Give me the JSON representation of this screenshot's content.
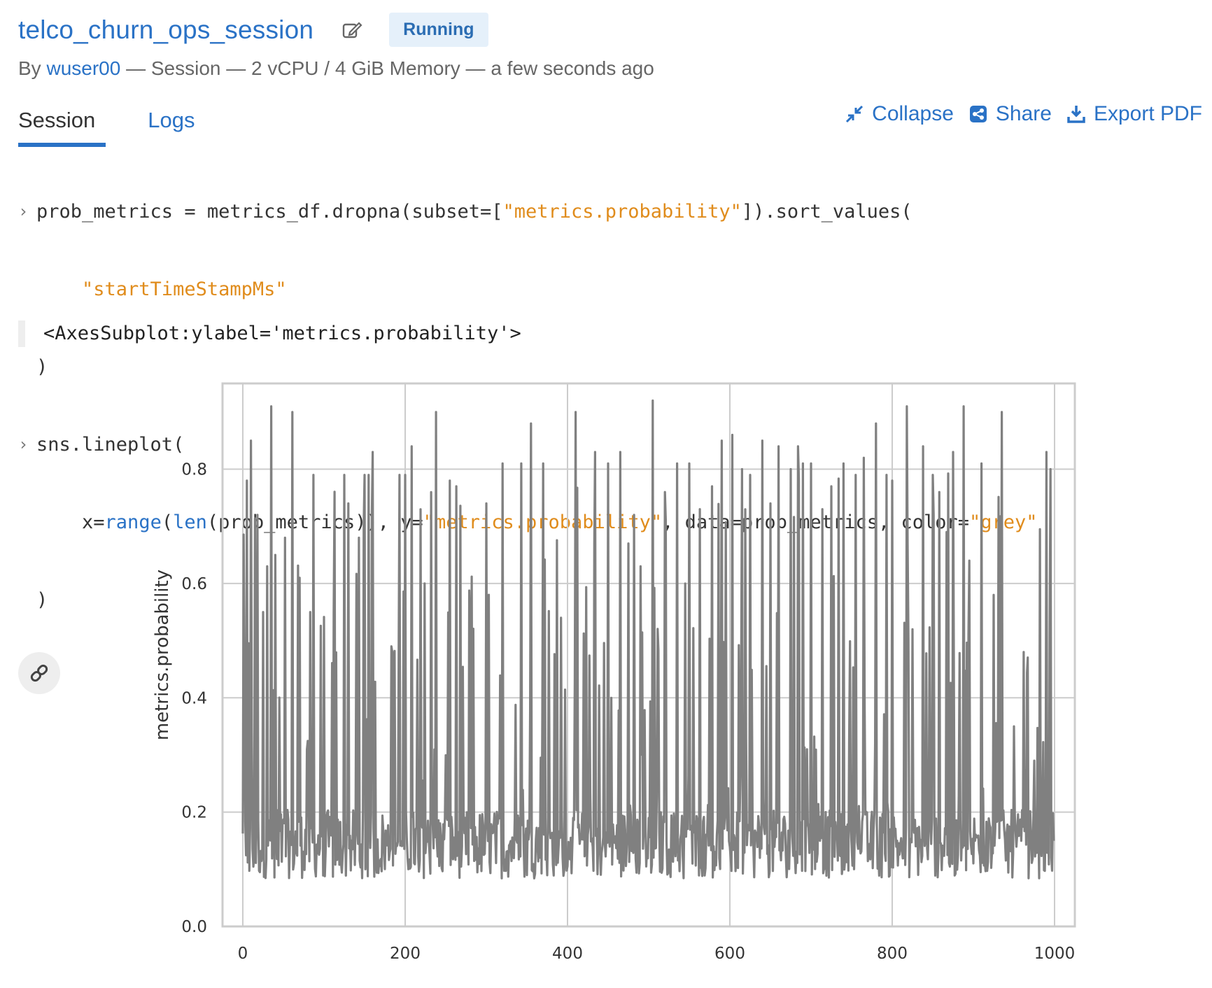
{
  "header": {
    "title": "telco_churn_ops_session",
    "status": "Running",
    "meta_prefix": "By ",
    "user": "wuser00",
    "meta_rest": " — Session — 2 vCPU / 4 GiB Memory — a few seconds ago"
  },
  "tabs": [
    {
      "label": "Session",
      "active": true
    },
    {
      "label": "Logs",
      "active": false
    }
  ],
  "actions": {
    "collapse": "Collapse",
    "share": "Share",
    "export": "Export PDF"
  },
  "code": {
    "l1a": "prob_metrics = metrics_df.dropna(subset=[",
    "l1s": "\"metrics.probability\"",
    "l1b": "]).sort_values(",
    "l2s": "    \"startTimeStampMs\"",
    "l3": ")",
    "l4": "sns.lineplot(",
    "l5a": "    x=",
    "l5f1": "range",
    "l5b": "(",
    "l5f2": "len",
    "l5c": "(prob_metrics)), y=",
    "l5s1": "\"metrics.probability\"",
    "l5d": ", data=prob_metrics, color=",
    "l5s2": "\"grey\"",
    "l6": ")"
  },
  "output": "<AxesSubplot:ylabel='metrics.probability'>",
  "colors": {
    "accent": "#2a72c6",
    "line": "#808080",
    "string": "#e08c1c"
  },
  "chart_data": {
    "type": "line",
    "xlabel": "",
    "ylabel": "metrics.probability",
    "xlim": [
      -25,
      1025
    ],
    "ylim": [
      0.0,
      0.95
    ],
    "xticks": [
      0,
      200,
      400,
      600,
      800,
      1000
    ],
    "yticks": [
      0.0,
      0.2,
      0.4,
      0.6,
      0.8
    ],
    "ytick_labels": [
      "0.0",
      "0.2",
      "0.4",
      "0.6",
      "0.8"
    ],
    "grid": true,
    "series": [
      {
        "color": "#808080",
        "n_points": 1000,
        "baseline": 0.15,
        "min": 0.04,
        "max": 0.92,
        "spikes": [
          [
            5,
            0.78
          ],
          [
            10,
            0.85
          ],
          [
            18,
            0.72
          ],
          [
            25,
            0.55
          ],
          [
            30,
            0.63
          ],
          [
            35,
            0.91
          ],
          [
            40,
            0.65
          ],
          [
            52,
            0.68
          ],
          [
            61,
            0.9
          ],
          [
            70,
            0.61
          ],
          [
            83,
            0.55
          ],
          [
            87,
            0.79
          ],
          [
            98,
            0.28
          ],
          [
            112,
            0.55
          ],
          [
            125,
            0.79
          ],
          [
            130,
            0.74
          ],
          [
            143,
            0.68
          ],
          [
            150,
            0.79
          ],
          [
            155,
            0.79
          ],
          [
            160,
            0.83
          ],
          [
            183,
            0.49
          ],
          [
            193,
            0.79
          ],
          [
            200,
            0.79
          ],
          [
            208,
            0.84
          ],
          [
            224,
            0.6
          ],
          [
            238,
            0.9
          ],
          [
            255,
            0.78
          ],
          [
            263,
            0.77
          ],
          [
            300,
            0.74
          ],
          [
            320,
            0.81
          ],
          [
            343,
            0.81
          ],
          [
            355,
            0.88
          ],
          [
            370,
            0.81
          ],
          [
            392,
            0.54
          ],
          [
            410,
            0.9
          ],
          [
            434,
            0.83
          ],
          [
            450,
            0.81
          ],
          [
            465,
            0.83
          ],
          [
            475,
            0.67
          ],
          [
            482,
            0.72
          ],
          [
            490,
            0.63
          ],
          [
            505,
            0.92
          ],
          [
            520,
            0.76
          ],
          [
            535,
            0.81
          ],
          [
            550,
            0.81
          ],
          [
            563,
            0.73
          ],
          [
            578,
            0.77
          ],
          [
            590,
            0.85
          ],
          [
            603,
            0.86
          ],
          [
            615,
            0.8
          ],
          [
            625,
            0.79
          ],
          [
            640,
            0.85
          ],
          [
            650,
            0.74
          ],
          [
            660,
            0.84
          ],
          [
            675,
            0.8
          ],
          [
            684,
            0.84
          ],
          [
            690,
            0.81
          ],
          [
            700,
            0.81
          ],
          [
            714,
            0.73
          ],
          [
            725,
            0.77
          ],
          [
            740,
            0.81
          ],
          [
            755,
            0.79
          ],
          [
            765,
            0.82
          ],
          [
            780,
            0.88
          ],
          [
            793,
            0.79
          ],
          [
            800,
            0.78
          ],
          [
            818,
            0.91
          ],
          [
            838,
            0.84
          ],
          [
            850,
            0.79
          ],
          [
            858,
            0.76
          ],
          [
            867,
            0.69
          ],
          [
            875,
            0.83
          ],
          [
            888,
            0.91
          ],
          [
            895,
            0.64
          ],
          [
            910,
            0.81
          ],
          [
            925,
            0.58
          ],
          [
            935,
            0.9
          ],
          [
            950,
            0.35
          ],
          [
            962,
            0.48
          ],
          [
            975,
            0.29
          ],
          [
            990,
            0.83
          ],
          [
            995,
            0.8
          ],
          [
            1000,
            0.8
          ]
        ]
      }
    ]
  }
}
